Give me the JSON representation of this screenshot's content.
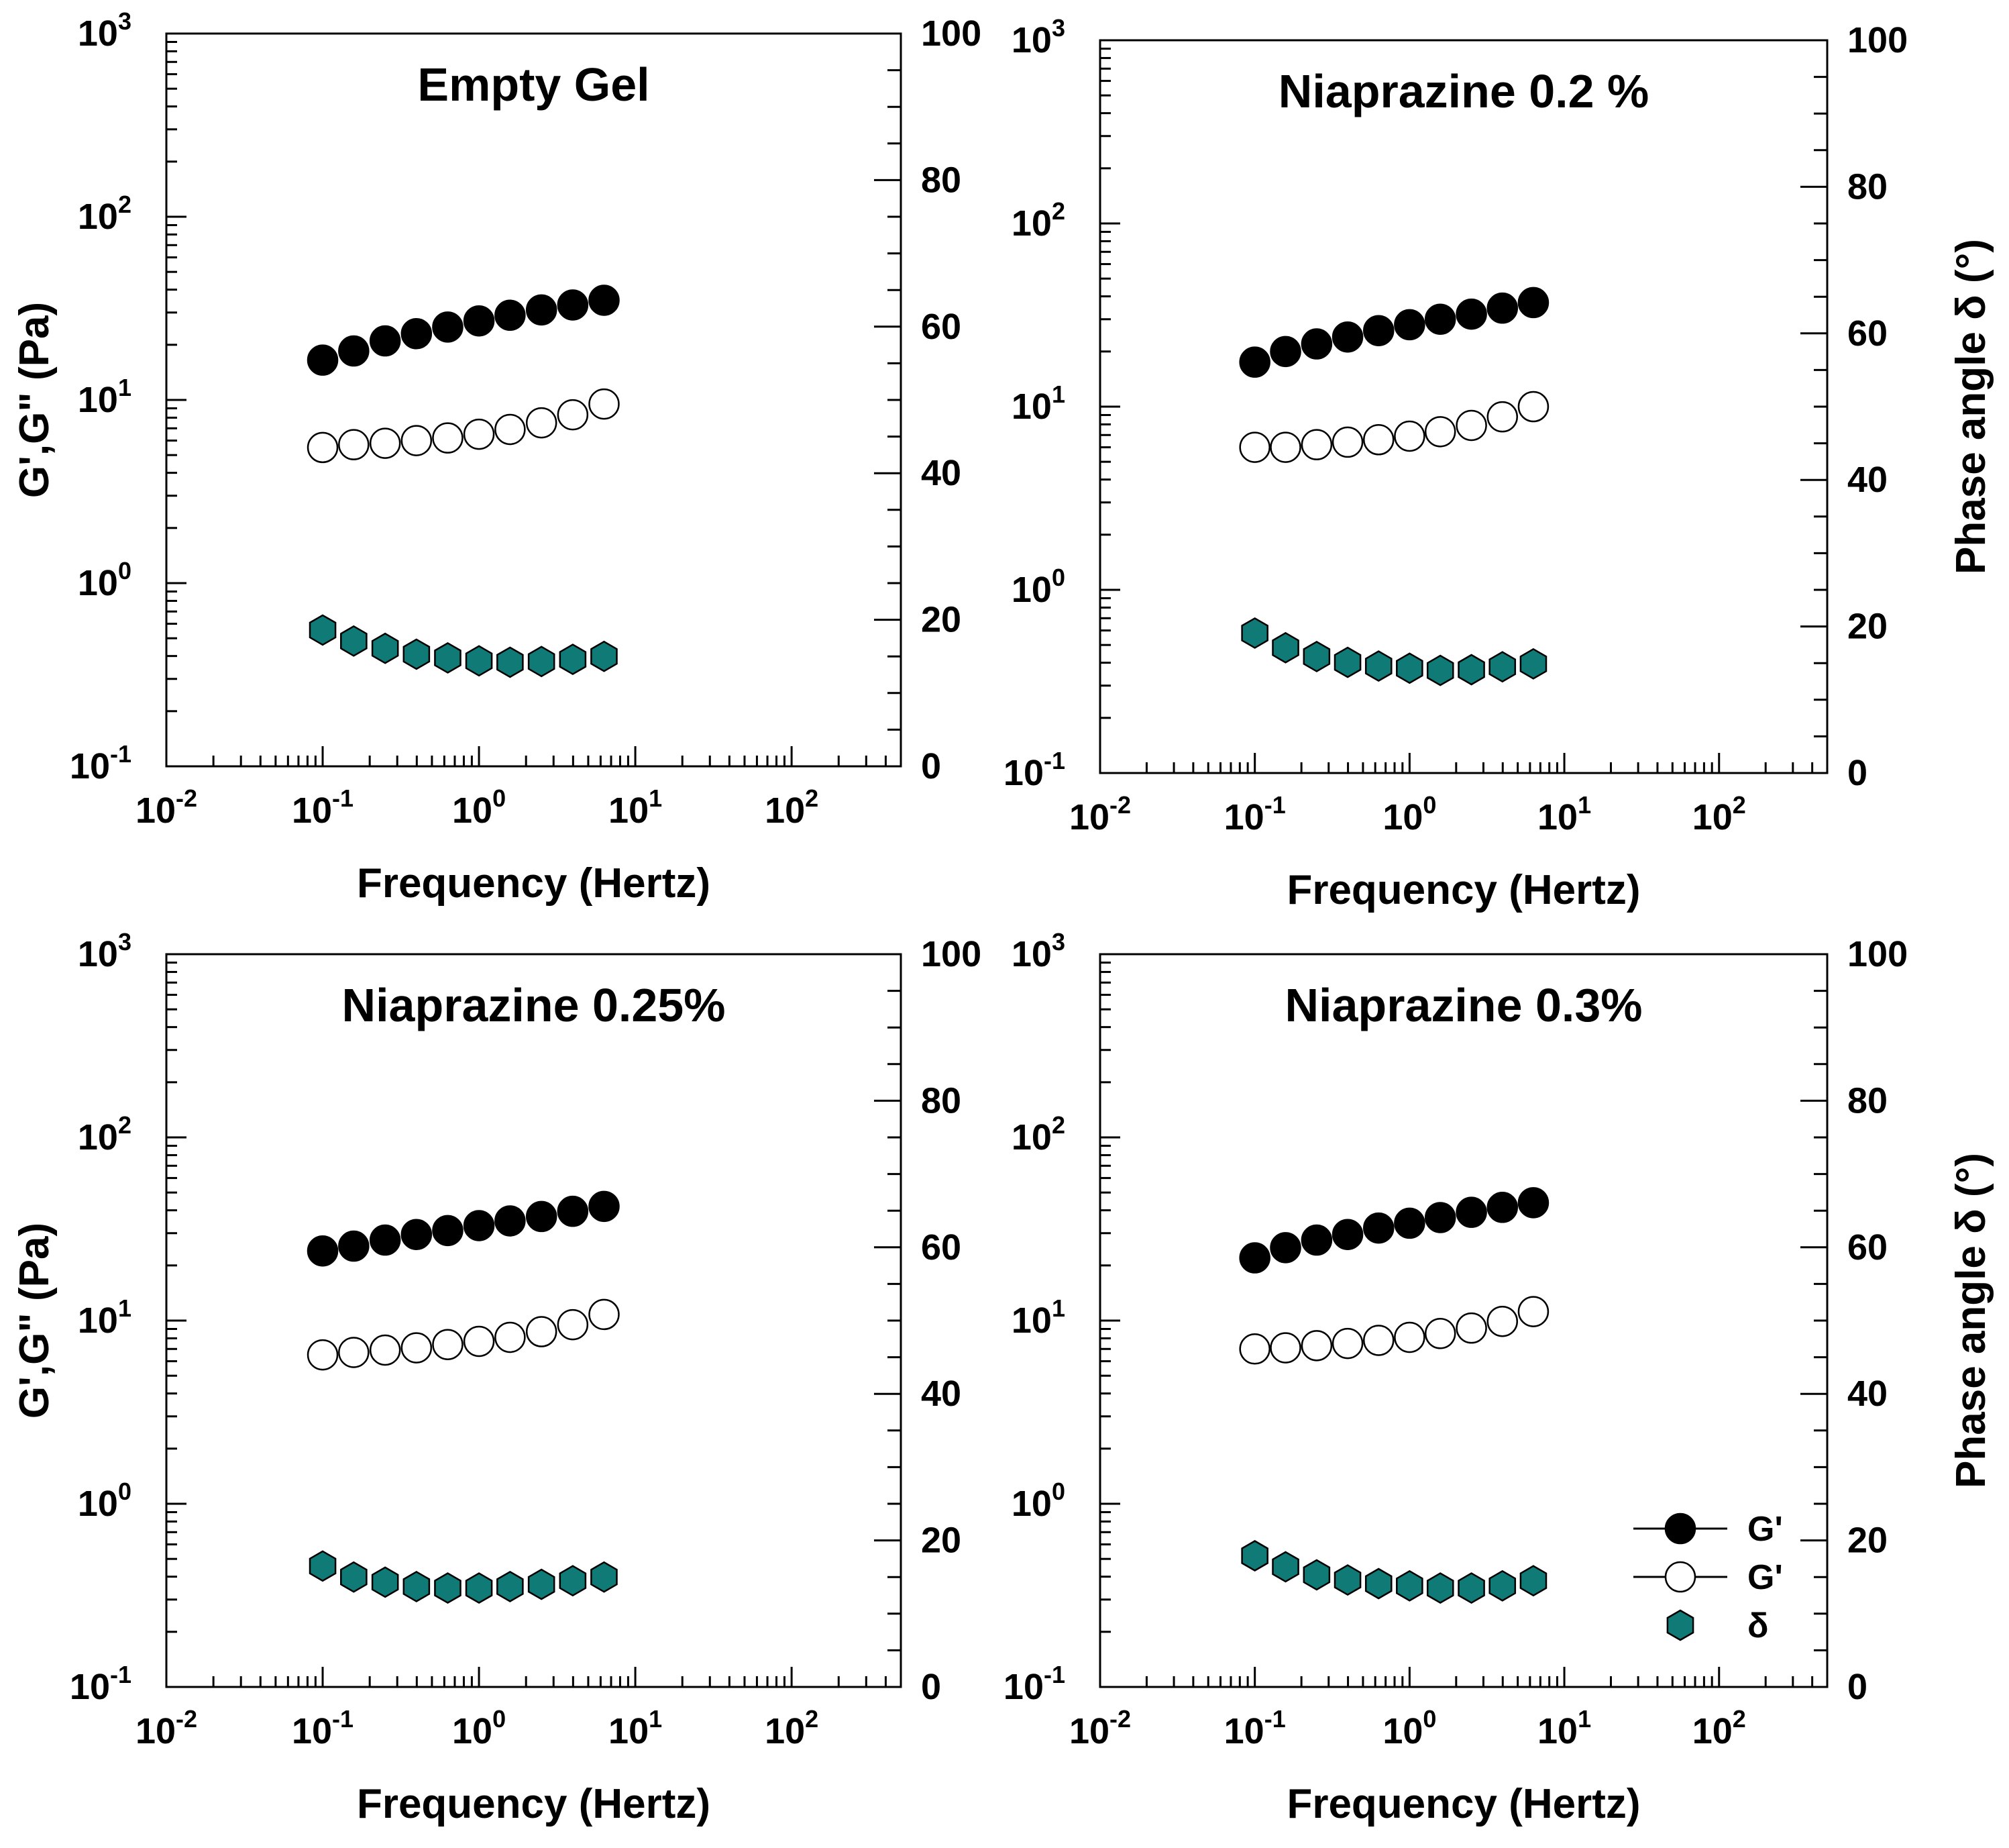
{
  "colors": {
    "g_prime": "#000000",
    "g_double_prime_fill": "#ffffff",
    "delta": "#0f7a76"
  },
  "legend": {
    "entries": [
      {
        "label": "G'",
        "marker": "filled-circle"
      },
      {
        "label": "G'",
        "marker": "open-circle"
      },
      {
        "label": "δ",
        "marker": "teal-hexagon"
      }
    ]
  },
  "chart_data": [
    {
      "type": "scatter",
      "title": "Empty Gel",
      "xlabel": "Frequency (Hertz)",
      "ylabel": "G',G\" (Pa)",
      "y2label": "",
      "xscale": "log",
      "xlim": [
        0.01,
        500
      ],
      "yscale": "log",
      "ylim": [
        0.1,
        1000
      ],
      "y2lim": [
        0,
        100
      ],
      "x": [
        0.1,
        0.158,
        0.251,
        0.398,
        0.631,
        1.0,
        1.58,
        2.51,
        3.98,
        6.31
      ],
      "series": [
        {
          "key": "gp",
          "axis": "left",
          "values": [
            16.5,
            18.5,
            21,
            23,
            25,
            27,
            29,
            31,
            33,
            35
          ]
        },
        {
          "key": "gpp",
          "axis": "left",
          "values": [
            5.5,
            5.7,
            5.8,
            6.0,
            6.2,
            6.5,
            6.9,
            7.5,
            8.3,
            9.5
          ]
        },
        {
          "key": "delta",
          "axis": "right",
          "values": [
            18.6,
            17.1,
            16.1,
            15.3,
            14.8,
            14.4,
            14.2,
            14.3,
            14.6,
            15.0
          ]
        }
      ],
      "xticks": [
        {
          "base": "10",
          "exp": "-2"
        },
        {
          "base": "10",
          "exp": "-1"
        },
        {
          "base": "10",
          "exp": "0"
        },
        {
          "base": "10",
          "exp": "1"
        },
        {
          "base": "10",
          "exp": "2"
        }
      ],
      "yticks": [
        {
          "base": "10",
          "exp": "-1"
        },
        {
          "base": "10",
          "exp": "0"
        },
        {
          "base": "10",
          "exp": "1"
        },
        {
          "base": "10",
          "exp": "2"
        },
        {
          "base": "10",
          "exp": "3"
        }
      ],
      "y2ticks": [
        "0",
        "20",
        "40",
        "60",
        "80",
        "100"
      ]
    },
    {
      "type": "scatter",
      "title": "Niaprazine 0.2 %",
      "xlabel": "Frequency (Hertz)",
      "ylabel": "",
      "y2label": "Phase angle δ (°)",
      "xscale": "log",
      "xlim": [
        0.01,
        500
      ],
      "yscale": "log",
      "ylim": [
        0.1,
        1000
      ],
      "y2lim": [
        0,
        100
      ],
      "x": [
        0.1,
        0.158,
        0.251,
        0.398,
        0.631,
        1.0,
        1.58,
        2.51,
        3.98,
        6.31
      ],
      "series": [
        {
          "key": "gp",
          "axis": "left",
          "values": [
            17.5,
            20,
            22,
            24,
            26,
            28,
            30,
            32,
            34.5,
            37
          ]
        },
        {
          "key": "gpp",
          "axis": "left",
          "values": [
            6.0,
            6.0,
            6.2,
            6.4,
            6.6,
            6.9,
            7.3,
            7.9,
            8.8,
            10
          ]
        },
        {
          "key": "delta",
          "axis": "right",
          "values": [
            19.1,
            17.1,
            15.9,
            15.1,
            14.6,
            14.3,
            14.0,
            14.1,
            14.5,
            14.9
          ]
        }
      ],
      "xticks": [
        {
          "base": "10",
          "exp": "-2"
        },
        {
          "base": "10",
          "exp": "-1"
        },
        {
          "base": "10",
          "exp": "0"
        },
        {
          "base": "10",
          "exp": "1"
        },
        {
          "base": "10",
          "exp": "2"
        }
      ],
      "yticks": [
        {
          "base": "10",
          "exp": "-1"
        },
        {
          "base": "10",
          "exp": "0"
        },
        {
          "base": "10",
          "exp": "1"
        },
        {
          "base": "10",
          "exp": "2"
        },
        {
          "base": "10",
          "exp": "3"
        }
      ],
      "y2ticks": [
        "0",
        "20",
        "40",
        "60",
        "80",
        "100"
      ]
    },
    {
      "type": "scatter",
      "title": "Niaprazine 0.25%",
      "xlabel": "Frequency (Hertz)",
      "ylabel": "G',G\" (Pa)",
      "y2label": "",
      "xscale": "log",
      "xlim": [
        0.01,
        500
      ],
      "yscale": "log",
      "ylim": [
        0.1,
        1000
      ],
      "y2lim": [
        0,
        100
      ],
      "x": [
        0.1,
        0.158,
        0.251,
        0.398,
        0.631,
        1.0,
        1.58,
        2.51,
        3.98,
        6.31
      ],
      "series": [
        {
          "key": "gp",
          "axis": "left",
          "values": [
            24,
            25.5,
            27.5,
            29.5,
            31,
            33,
            35,
            37,
            39.5,
            42
          ]
        },
        {
          "key": "gpp",
          "axis": "left",
          "values": [
            6.5,
            6.7,
            6.9,
            7.1,
            7.4,
            7.7,
            8.1,
            8.7,
            9.5,
            10.8
          ]
        },
        {
          "key": "delta",
          "axis": "right",
          "values": [
            16.5,
            15.0,
            14.3,
            13.7,
            13.5,
            13.5,
            13.7,
            14.0,
            14.5,
            15.0
          ]
        }
      ],
      "xticks": [
        {
          "base": "10",
          "exp": "-2"
        },
        {
          "base": "10",
          "exp": "-1"
        },
        {
          "base": "10",
          "exp": "0"
        },
        {
          "base": "10",
          "exp": "1"
        },
        {
          "base": "10",
          "exp": "2"
        }
      ],
      "yticks": [
        {
          "base": "10",
          "exp": "-1"
        },
        {
          "base": "10",
          "exp": "0"
        },
        {
          "base": "10",
          "exp": "1"
        },
        {
          "base": "10",
          "exp": "2"
        },
        {
          "base": "10",
          "exp": "3"
        }
      ],
      "y2ticks": [
        "0",
        "20",
        "40",
        "60",
        "80",
        "100"
      ]
    },
    {
      "type": "scatter",
      "title": "Niaprazine 0.3%",
      "xlabel": "Frequency (Hertz)",
      "ylabel": "",
      "y2label": "Phase angle δ (°)",
      "xscale": "log",
      "xlim": [
        0.01,
        500
      ],
      "yscale": "log",
      "ylim": [
        0.1,
        1000
      ],
      "y2lim": [
        0,
        100
      ],
      "x": [
        0.1,
        0.158,
        0.251,
        0.398,
        0.631,
        1.0,
        1.58,
        2.51,
        3.98,
        6.31
      ],
      "series": [
        {
          "key": "gp",
          "axis": "left",
          "values": [
            22,
            25,
            27.5,
            29.5,
            32,
            34,
            36.5,
            39,
            41.5,
            44
          ]
        },
        {
          "key": "gpp",
          "axis": "left",
          "values": [
            7.0,
            7.1,
            7.3,
            7.5,
            7.8,
            8.1,
            8.5,
            9.1,
            9.9,
            11.2
          ]
        },
        {
          "key": "delta",
          "axis": "right",
          "values": [
            17.9,
            16.4,
            15.3,
            14.6,
            14.1,
            13.8,
            13.5,
            13.5,
            13.8,
            14.5
          ]
        }
      ],
      "xticks": [
        {
          "base": "10",
          "exp": "-2"
        },
        {
          "base": "10",
          "exp": "-1"
        },
        {
          "base": "10",
          "exp": "0"
        },
        {
          "base": "10",
          "exp": "1"
        },
        {
          "base": "10",
          "exp": "2"
        }
      ],
      "yticks": [
        {
          "base": "10",
          "exp": "-1"
        },
        {
          "base": "10",
          "exp": "0"
        },
        {
          "base": "10",
          "exp": "1"
        },
        {
          "base": "10",
          "exp": "2"
        },
        {
          "base": "10",
          "exp": "3"
        }
      ],
      "y2ticks": [
        "0",
        "20",
        "40",
        "60",
        "80",
        "100"
      ]
    }
  ]
}
